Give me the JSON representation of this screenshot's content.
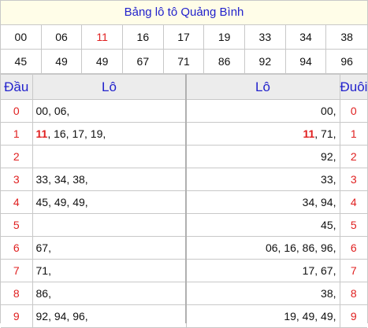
{
  "title": "Bảng lô tô Quảng Bình",
  "numbers": [
    "00",
    "06",
    "11",
    "16",
    "17",
    "19",
    "33",
    "34",
    "38",
    "45",
    "49",
    "49",
    "67",
    "71",
    "86",
    "92",
    "94",
    "96"
  ],
  "highlight_number": "11",
  "colors": {
    "accent_text": "#2222cc",
    "highlight": "#e02020",
    "title_bg": "#fffde8",
    "header_bg": "#ececec"
  },
  "headers": {
    "dau": "Đầu",
    "lo_left": "Lô",
    "lo_right": "Lô",
    "duoi": "Đuôi"
  },
  "rows": [
    {
      "dau": "0",
      "lo_left": [
        {
          "t": "00, 06,"
        }
      ],
      "lo_right": [
        {
          "t": "00,"
        }
      ],
      "duoi": "0"
    },
    {
      "dau": "1",
      "lo_left": [
        {
          "t": "11",
          "hl": true
        },
        {
          "t": ", 16, 17, 19,"
        }
      ],
      "lo_right": [
        {
          "t": "11",
          "hl": true
        },
        {
          "t": ", 71,"
        }
      ],
      "duoi": "1"
    },
    {
      "dau": "2",
      "lo_left": [],
      "lo_right": [
        {
          "t": "92,"
        }
      ],
      "duoi": "2"
    },
    {
      "dau": "3",
      "lo_left": [
        {
          "t": "33, 34, 38,"
        }
      ],
      "lo_right": [
        {
          "t": "33,"
        }
      ],
      "duoi": "3"
    },
    {
      "dau": "4",
      "lo_left": [
        {
          "t": "45, 49, 49,"
        }
      ],
      "lo_right": [
        {
          "t": "34, 94,"
        }
      ],
      "duoi": "4"
    },
    {
      "dau": "5",
      "lo_left": [],
      "lo_right": [
        {
          "t": "45,"
        }
      ],
      "duoi": "5"
    },
    {
      "dau": "6",
      "lo_left": [
        {
          "t": "67,"
        }
      ],
      "lo_right": [
        {
          "t": "06, 16, 86, 96,"
        }
      ],
      "duoi": "6"
    },
    {
      "dau": "7",
      "lo_left": [
        {
          "t": "71,"
        }
      ],
      "lo_right": [
        {
          "t": "17, 67,"
        }
      ],
      "duoi": "7"
    },
    {
      "dau": "8",
      "lo_left": [
        {
          "t": "86,"
        }
      ],
      "lo_right": [
        {
          "t": "38,"
        }
      ],
      "duoi": "8"
    },
    {
      "dau": "9",
      "lo_left": [
        {
          "t": "92, 94, 96,"
        }
      ],
      "lo_right": [
        {
          "t": "19, 49, 49,"
        }
      ],
      "duoi": "9"
    }
  ]
}
